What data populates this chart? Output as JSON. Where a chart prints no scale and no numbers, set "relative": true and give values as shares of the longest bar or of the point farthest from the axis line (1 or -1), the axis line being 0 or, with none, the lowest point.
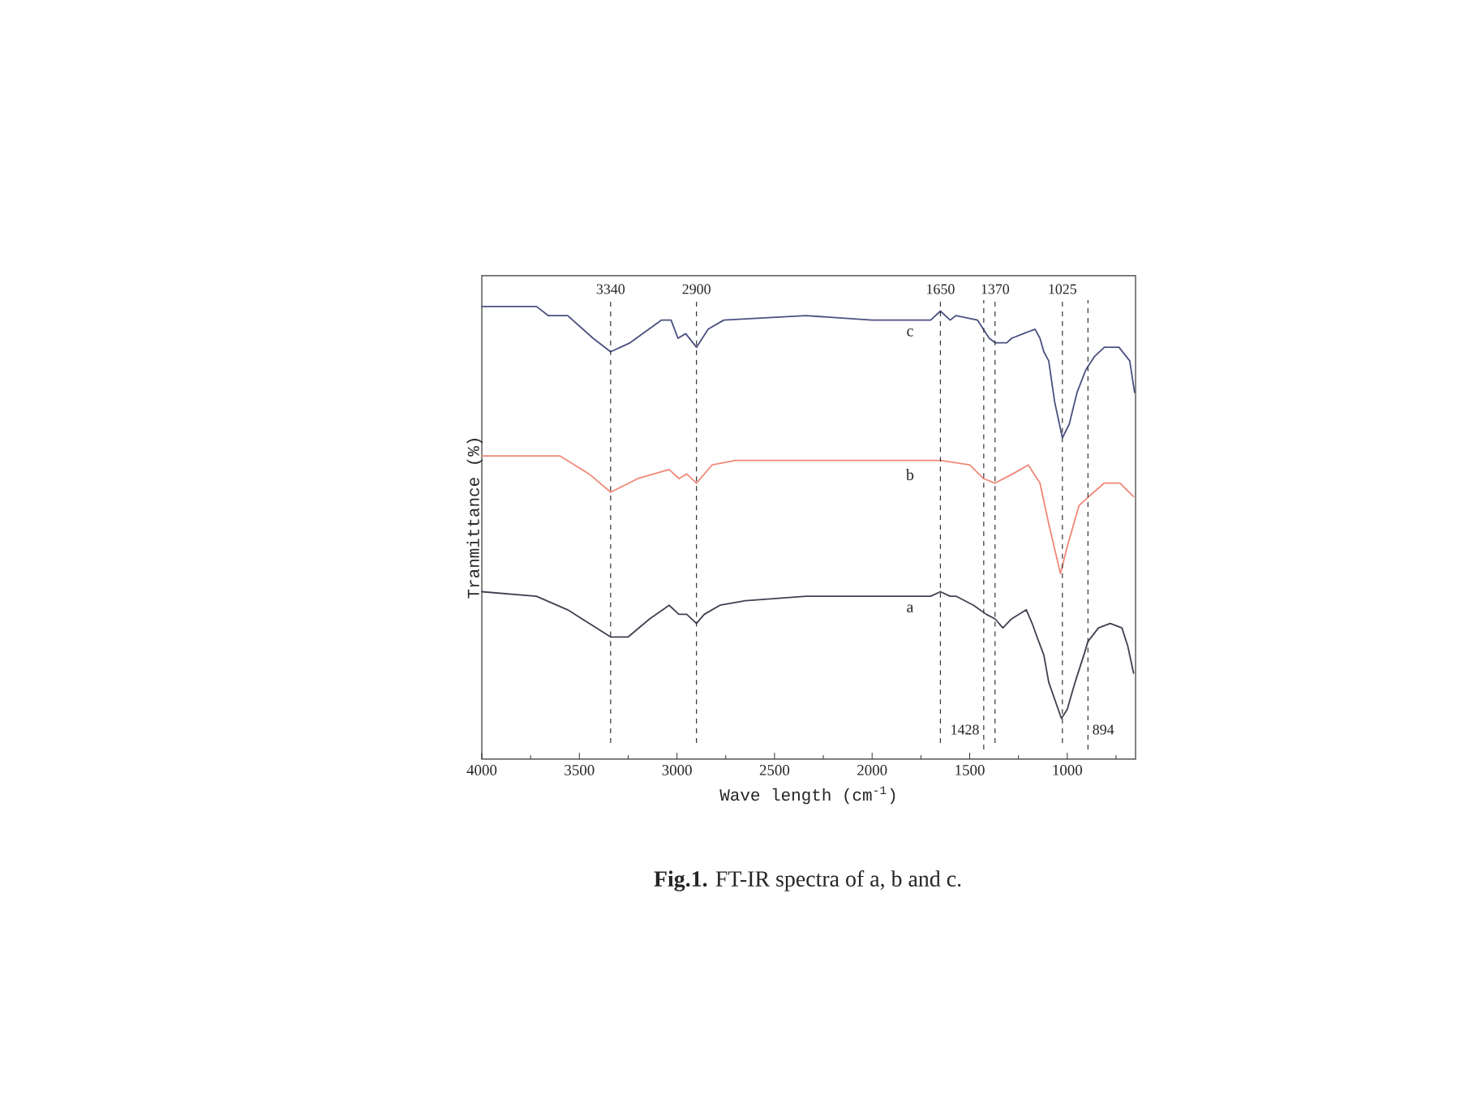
{
  "chart_data": {
    "type": "line",
    "relative": true,
    "xlabel": "Wave length (cm$^{-1}$)",
    "ylabel": "Tranmittance (%)",
    "xlim": [
      4000,
      650
    ],
    "xticks": [
      4000,
      {
        "value": 3750,
        "label": null
      },
      3500,
      {
        "value": 3250,
        "label": null
      },
      3000,
      {
        "value": 2750,
        "label": null
      },
      2500,
      {
        "value": 2250,
        "label": null
      },
      2000,
      {
        "value": 1750,
        "label": null
      },
      1500,
      {
        "value": 1250,
        "label": null
      },
      1000,
      {
        "value": 750,
        "label": null
      }
    ],
    "series": [
      {
        "name": "a",
        "color": "#404050",
        "x": [
          4000,
          3720,
          3560,
          3450,
          3340,
          3250,
          3140,
          3040,
          2990,
          2950,
          2900,
          2860,
          2780,
          2650,
          2340,
          1700,
          1650,
          1600,
          1570,
          1480,
          1415,
          1370,
          1330,
          1285,
          1210,
          1180,
          1155,
          1120,
          1095,
          1030,
          1000,
          960,
          915,
          894,
          840,
          780,
          720,
          690,
          660
        ],
        "values": [
          0.37,
          0.36,
          0.33,
          0.3,
          0.27,
          0.27,
          0.31,
          0.34,
          0.32,
          0.32,
          0.3,
          0.32,
          0.34,
          0.35,
          0.36,
          0.36,
          0.37,
          0.36,
          0.36,
          0.34,
          0.32,
          0.31,
          0.29,
          0.31,
          0.33,
          0.3,
          0.27,
          0.23,
          0.17,
          0.09,
          0.11,
          0.17,
          0.23,
          0.26,
          0.29,
          0.3,
          0.29,
          0.25,
          0.19
        ]
      },
      {
        "name": "b",
        "color": "#f08878",
        "x": [
          4000,
          3600,
          3450,
          3340,
          3200,
          3040,
          2990,
          2950,
          2900,
          2820,
          2700,
          2000,
          1650,
          1500,
          1430,
          1370,
          1280,
          1200,
          1140,
          1095,
          1035,
          1000,
          940,
          890,
          810,
          730,
          660
        ],
        "values": [
          0.67,
          0.67,
          0.63,
          0.59,
          0.62,
          0.64,
          0.62,
          0.63,
          0.61,
          0.65,
          0.66,
          0.66,
          0.66,
          0.65,
          0.62,
          0.61,
          0.63,
          0.65,
          0.61,
          0.52,
          0.41,
          0.47,
          0.56,
          0.58,
          0.61,
          0.61,
          0.58
        ]
      },
      {
        "name": "c",
        "color": "#4a5080",
        "x": [
          4000,
          3720,
          3660,
          3560,
          3430,
          3340,
          3240,
          3080,
          3030,
          2995,
          2955,
          2900,
          2840,
          2760,
          2340,
          2000,
          1700,
          1650,
          1600,
          1570,
          1460,
          1400,
          1370,
          1310,
          1285,
          1225,
          1165,
          1140,
          1120,
          1095,
          1065,
          1025,
          990,
          950,
          905,
          860,
          810,
          735,
          680,
          655
        ],
        "values": [
          1.0,
          1.0,
          0.98,
          0.98,
          0.93,
          0.9,
          0.92,
          0.97,
          0.97,
          0.93,
          0.94,
          0.91,
          0.95,
          0.97,
          0.98,
          0.97,
          0.97,
          0.99,
          0.97,
          0.98,
          0.97,
          0.93,
          0.92,
          0.92,
          0.93,
          0.94,
          0.95,
          0.93,
          0.9,
          0.88,
          0.79,
          0.71,
          0.74,
          0.81,
          0.86,
          0.89,
          0.91,
          0.91,
          0.88,
          0.81
        ]
      }
    ],
    "ref_lines": [
      {
        "axis": "x",
        "value": 3340,
        "label": "3340",
        "line_style": "dashed",
        "color": "#333333"
      },
      {
        "axis": "x",
        "value": 2900,
        "label": "2900",
        "line_style": "dashed",
        "color": "#333333"
      },
      {
        "axis": "x",
        "value": 1650,
        "label": "1650",
        "line_style": "dashed",
        "color": "#333333"
      },
      {
        "axis": "x",
        "value": 1370,
        "label": "1370",
        "line_style": "dashed",
        "color": "#333333"
      },
      {
        "axis": "x",
        "value": 1025,
        "label": "1025",
        "line_style": "dashed",
        "color": "#333333"
      },
      {
        "axis": "x",
        "value": 1428,
        "label": "1428",
        "line_style": "dashed",
        "color": "#333333"
      },
      {
        "axis": "x",
        "value": 894,
        "label": "894",
        "line_style": "dashed",
        "color": "#333333"
      }
    ],
    "annotations": [
      "**Fig.1.** FT-IR spectra of a, b and c."
    ]
  }
}
